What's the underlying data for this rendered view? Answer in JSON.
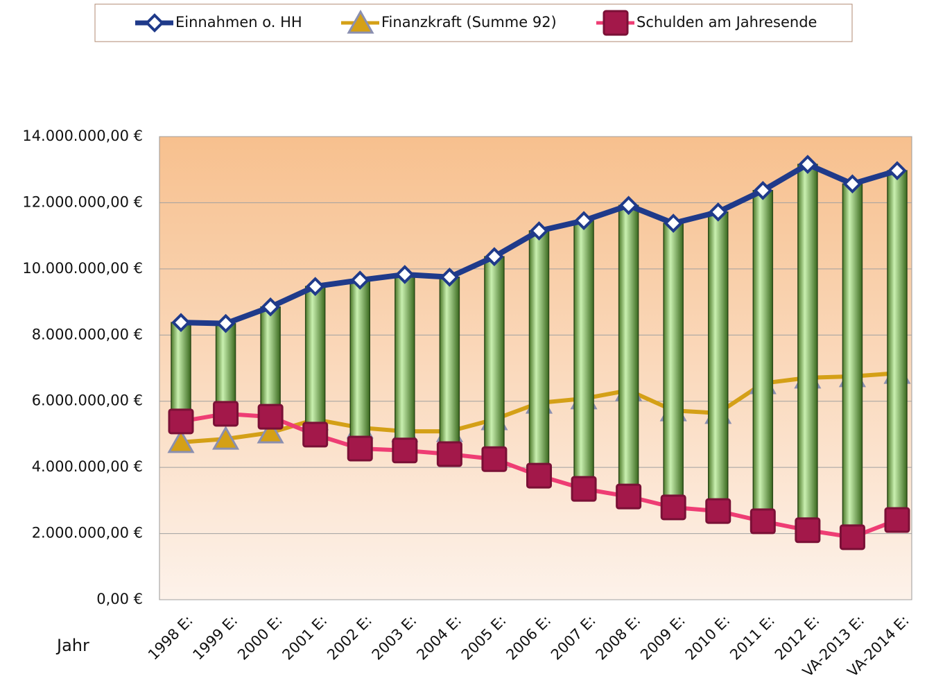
{
  "chart_data": {
    "type": "line",
    "x_label": "Jahr",
    "categories": [
      "1998 E:",
      "1999 E:",
      "2000 E:",
      "2001 E:",
      "2002 E:",
      "2003 E:",
      "2004 E:",
      "2005 E:",
      "2006 E:",
      "2007 E:",
      "2008 E:",
      "2009 E:",
      "2010 E:",
      "2011 E:",
      "2012 E:",
      "VA-2013 E:",
      "VA-2014 E:"
    ],
    "series": [
      {
        "name": "Einnahmen o. HH",
        "color": "#1f3a8a",
        "marker": "diamond",
        "values": [
          8380000,
          8350000,
          8850000,
          9470000,
          9660000,
          9830000,
          9750000,
          10370000,
          11150000,
          11460000,
          11920000,
          11380000,
          11720000,
          12370000,
          13160000,
          12570000,
          12970000
        ]
      },
      {
        "name": "Finanzkraft (Summe 92)",
        "color": "#d4a017",
        "marker": "triangle",
        "values": [
          4760000,
          4860000,
          5050000,
          5450000,
          5200000,
          5090000,
          5090000,
          5450000,
          5950000,
          6080000,
          6330000,
          5720000,
          5640000,
          6540000,
          6710000,
          6750000,
          6850000
        ]
      },
      {
        "name": "Schulden am Jahresende",
        "color": "#ee3d74",
        "marker": "square",
        "values": [
          5390000,
          5620000,
          5530000,
          4990000,
          4570000,
          4510000,
          4400000,
          4250000,
          3750000,
          3350000,
          3120000,
          2790000,
          2680000,
          2370000,
          2100000,
          1890000,
          2410000
        ]
      }
    ],
    "up_down_bars": true,
    "ylim": [
      0,
      14000000
    ],
    "yticks": [
      {
        "value": 0,
        "label": "0,00 €"
      },
      {
        "value": 2000000,
        "label": "2.000.000,00 €"
      },
      {
        "value": 4000000,
        "label": "4.000.000,00 €"
      },
      {
        "value": 6000000,
        "label": "6.000.000,00 €"
      },
      {
        "value": 8000000,
        "label": "8.000.000,00 €"
      },
      {
        "value": 10000000,
        "label": "10.000.000,00 €"
      },
      {
        "value": 12000000,
        "label": "12.000.000,00 €"
      },
      {
        "value": 14000000,
        "label": "14.000.000,00 €"
      }
    ],
    "grid": true,
    "legend": "top"
  }
}
